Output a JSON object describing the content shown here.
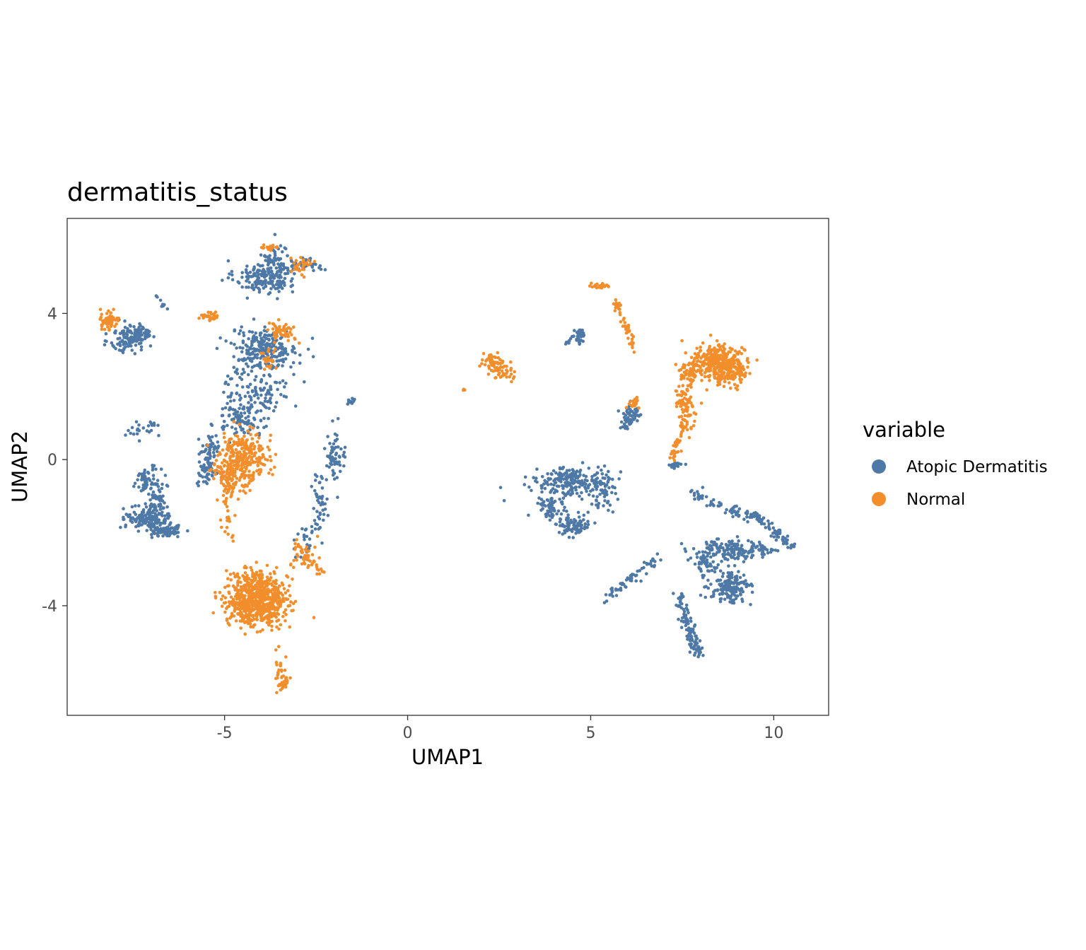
{
  "chart_data": {
    "type": "scatter",
    "title": "dermatitis_status",
    "xlabel": "UMAP1",
    "ylabel": "UMAP2",
    "xlim": [
      -9.3,
      11.5
    ],
    "ylim": [
      -7.0,
      6.6
    ],
    "x_ticks": [
      -5,
      0,
      5,
      10
    ],
    "y_ticks": [
      -4,
      0,
      4
    ],
    "x_tick_labels": [
      "-5",
      "0",
      "5",
      "10"
    ],
    "y_tick_labels": [
      "-4",
      "0",
      "4"
    ],
    "grid": false,
    "legend": {
      "title": "variable",
      "position": "right"
    },
    "series": [
      {
        "name": "Atopic Dermatitis",
        "color": "#4e79a7",
        "clusters": [
          {
            "cx": -3.9,
            "cy": 5.0,
            "sx": 0.55,
            "sy": 0.3,
            "n": 180
          },
          {
            "cx": -3.6,
            "cy": 5.45,
            "sx": 0.25,
            "sy": 0.35,
            "n": 50
          },
          {
            "cx": -2.8,
            "cy": 5.35,
            "sx": 0.35,
            "sy": 0.12,
            "n": 40
          },
          {
            "cx": -7.6,
            "cy": 3.3,
            "sx": 0.35,
            "sy": 0.25,
            "n": 120
          },
          {
            "cx": -7.2,
            "cy": 3.5,
            "sx": 0.2,
            "sy": 0.15,
            "n": 30
          },
          {
            "cx": -3.9,
            "cy": 3.05,
            "sx": 0.6,
            "sy": 0.35,
            "n": 220
          },
          {
            "cx": -4.1,
            "cy": 2.0,
            "sx": 0.6,
            "sy": 0.6,
            "n": 130
          },
          {
            "cx": -4.5,
            "cy": 1.1,
            "sx": 0.5,
            "sy": 0.3,
            "n": 90
          },
          {
            "cx": -5.4,
            "cy": 0.3,
            "sx": 0.2,
            "sy": 0.3,
            "n": 50
          },
          {
            "cx": -5.5,
            "cy": -0.35,
            "sx": 0.15,
            "sy": 0.3,
            "n": 50
          },
          {
            "cx": -7.1,
            "cy": -0.6,
            "sx": 0.25,
            "sy": 0.25,
            "n": 70
          },
          {
            "cx": -6.8,
            "cy": -1.2,
            "sx": 0.15,
            "sy": 0.25,
            "n": 40
          },
          {
            "cx": -7.1,
            "cy": -1.6,
            "sx": 0.4,
            "sy": 0.2,
            "n": 150
          },
          {
            "cx": -6.6,
            "cy": -1.95,
            "sx": 0.3,
            "sy": 0.12,
            "n": 80
          },
          {
            "cx": -7.2,
            "cy": 0.85,
            "sx": 0.35,
            "sy": 0.15,
            "n": 25
          },
          {
            "cx": -2.0,
            "cy": 0.0,
            "sx": 0.2,
            "sy": 0.45,
            "n": 60
          },
          {
            "cx": -2.4,
            "cy": -1.2,
            "sx": 0.15,
            "sy": 0.6,
            "n": 45
          },
          {
            "cx": -2.8,
            "cy": -2.2,
            "sx": 0.25,
            "sy": 0.3,
            "n": 25
          },
          {
            "cx": -1.5,
            "cy": 1.6,
            "sx": 0.1,
            "sy": 0.06,
            "n": 10
          },
          {
            "cx": 4.4,
            "cy": -0.6,
            "sx": 0.6,
            "sy": 0.25,
            "n": 190
          },
          {
            "cx": 4.5,
            "cy": -1.8,
            "sx": 0.35,
            "sy": 0.2,
            "n": 90
          },
          {
            "cx": 3.9,
            "cy": -1.3,
            "sx": 0.25,
            "sy": 0.3,
            "n": 60
          },
          {
            "cx": 5.3,
            "cy": -0.9,
            "sx": 0.25,
            "sy": 0.45,
            "n": 70
          },
          {
            "cx": 4.7,
            "cy": 3.35,
            "sx": 0.15,
            "sy": 0.15,
            "n": 25
          },
          {
            "cx": 6.1,
            "cy": 1.2,
            "sx": 0.2,
            "sy": 0.25,
            "n": 40
          },
          {
            "cx": 7.3,
            "cy": -0.15,
            "sx": 0.15,
            "sy": 0.06,
            "n": 15
          },
          {
            "cx": 8.6,
            "cy": -2.5,
            "sx": 0.55,
            "sy": 0.2,
            "n": 140
          },
          {
            "cx": 8.8,
            "cy": -3.5,
            "sx": 0.35,
            "sy": 0.28,
            "n": 160
          },
          {
            "cx": 8.2,
            "cy": -2.9,
            "sx": 0.2,
            "sy": 0.2,
            "n": 40
          },
          {
            "cx": 9.6,
            "cy": -2.45,
            "sx": 0.3,
            "sy": 0.12,
            "n": 50
          },
          {
            "cx": 6.5,
            "cy": -3.5,
            "sx": 0.7,
            "sy": 0.2,
            "n": 1,
            "skip": true
          }
        ],
        "lines": [
          {
            "x0": 7.7,
            "y0": -0.9,
            "x1": 9.3,
            "y1": -1.6,
            "n": 60,
            "spread": 0.07
          },
          {
            "x0": 9.3,
            "y0": -1.4,
            "x1": 10.5,
            "y1": -2.35,
            "n": 70,
            "spread": 0.07
          },
          {
            "x0": 5.4,
            "y0": -3.8,
            "x1": 6.8,
            "y1": -2.7,
            "n": 60,
            "spread": 0.07
          },
          {
            "x0": 7.4,
            "y0": -3.7,
            "x1": 7.9,
            "y1": -5.3,
            "n": 80,
            "spread": 0.08
          },
          {
            "x0": 7.7,
            "y0": -4.7,
            "x1": 8.0,
            "y1": -5.3,
            "n": 30,
            "spread": 0.08
          },
          {
            "x0": 5.9,
            "y0": 0.8,
            "x1": 6.3,
            "y1": 1.5,
            "n": 25,
            "spread": 0.06
          },
          {
            "x0": 4.3,
            "y0": 3.15,
            "x1": 4.8,
            "y1": 3.6,
            "n": 15,
            "spread": 0.04
          },
          {
            "x0": -6.6,
            "y0": 4.1,
            "x1": -6.9,
            "y1": 4.5,
            "n": 8,
            "spread": 0.04
          }
        ]
      },
      {
        "name": "Normal",
        "color": "#f28e2b",
        "clusters": [
          {
            "cx": -4.1,
            "cy": -3.9,
            "sx": 0.55,
            "sy": 0.42,
            "n": 650
          },
          {
            "cx": -4.2,
            "cy": -3.3,
            "sx": 0.4,
            "sy": 0.25,
            "n": 80
          },
          {
            "cx": -4.5,
            "cy": 0.1,
            "sx": 0.45,
            "sy": 0.45,
            "n": 280
          },
          {
            "cx": -4.8,
            "cy": -0.5,
            "sx": 0.35,
            "sy": 0.3,
            "n": 80
          },
          {
            "cx": -4.9,
            "cy": -1.6,
            "sx": 0.12,
            "sy": 0.5,
            "n": 25
          },
          {
            "cx": -3.4,
            "cy": -6.1,
            "sx": 0.15,
            "sy": 0.15,
            "n": 30
          },
          {
            "cx": -3.5,
            "cy": -5.6,
            "sx": 0.1,
            "sy": 0.25,
            "n": 15
          },
          {
            "cx": -8.2,
            "cy": 3.8,
            "sx": 0.2,
            "sy": 0.15,
            "n": 60
          },
          {
            "cx": -3.4,
            "cy": 3.5,
            "sx": 0.25,
            "sy": 0.2,
            "n": 50
          },
          {
            "cx": -3.8,
            "cy": 2.7,
            "sx": 0.2,
            "sy": 0.2,
            "n": 25
          },
          {
            "cx": -5.4,
            "cy": 3.95,
            "sx": 0.2,
            "sy": 0.1,
            "n": 25
          },
          {
            "cx": -3.8,
            "cy": 5.8,
            "sx": 0.12,
            "sy": 0.08,
            "n": 20
          },
          {
            "cx": -2.9,
            "cy": 5.3,
            "sx": 0.25,
            "sy": 0.12,
            "n": 30
          },
          {
            "cx": -2.8,
            "cy": -2.7,
            "sx": 0.3,
            "sy": 0.3,
            "n": 30
          },
          {
            "cx": 2.3,
            "cy": 2.7,
            "sx": 0.2,
            "sy": 0.15,
            "n": 40
          },
          {
            "cx": 2.6,
            "cy": 2.4,
            "sx": 0.25,
            "sy": 0.15,
            "n": 40
          },
          {
            "cx": 8.5,
            "cy": 2.7,
            "sx": 0.45,
            "sy": 0.3,
            "n": 300
          },
          {
            "cx": 8.8,
            "cy": 2.3,
            "sx": 0.3,
            "sy": 0.25,
            "n": 100
          },
          {
            "cx": 7.7,
            "cy": 2.4,
            "sx": 0.2,
            "sy": 0.25,
            "n": 60
          },
          {
            "cx": 7.6,
            "cy": 1.5,
            "sx": 0.2,
            "sy": 0.5,
            "n": 80
          },
          {
            "cx": 6.2,
            "cy": 1.5,
            "sx": 0.12,
            "sy": 0.12,
            "n": 15
          },
          {
            "cx": 5.3,
            "cy": 4.75,
            "sx": 0.2,
            "sy": 0.04,
            "n": 25
          },
          {
            "cx": 1.55,
            "cy": 1.9,
            "sx": 0.03,
            "sy": 0.03,
            "n": 3
          }
        ],
        "lines": [
          {
            "x0": 5.7,
            "y0": 4.3,
            "x1": 6.2,
            "y1": 3.0,
            "n": 50,
            "spread": 0.05
          },
          {
            "x0": 7.2,
            "y0": 0.0,
            "x1": 7.6,
            "y1": 1.2,
            "n": 40,
            "spread": 0.06
          },
          {
            "x0": -3.1,
            "y0": -2.3,
            "x1": -2.3,
            "y1": -3.1,
            "n": 30,
            "spread": 0.08
          }
        ]
      }
    ]
  }
}
